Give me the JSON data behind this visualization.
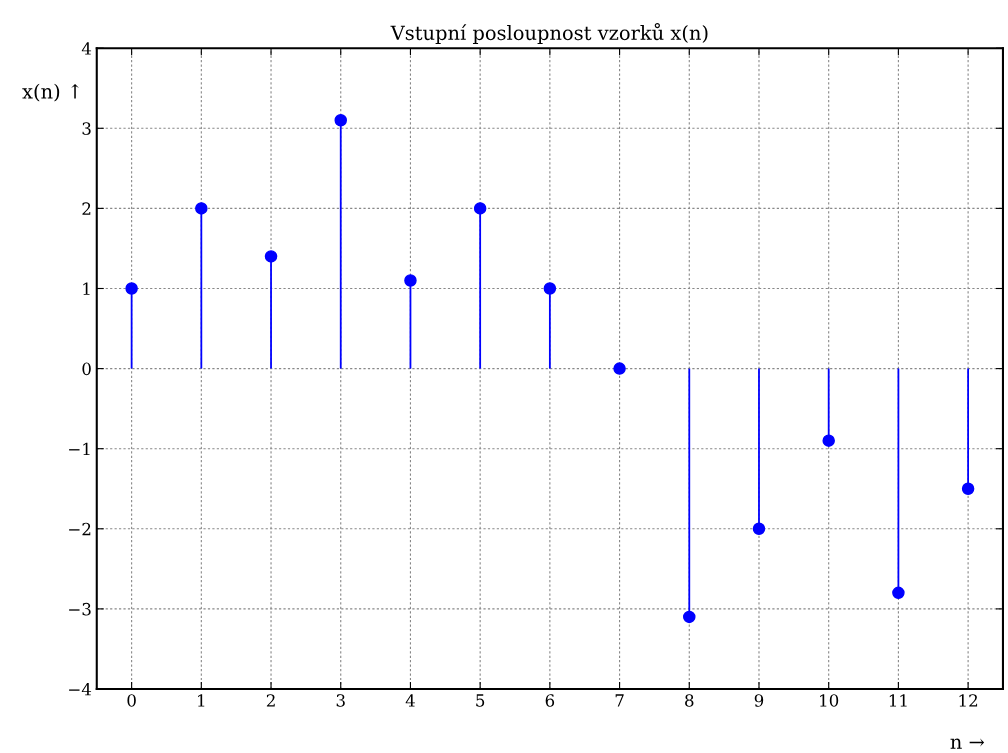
{
  "chart_data": {
    "type": "lollipop",
    "title": "Vstupní posloupnost vzorků x(n)",
    "xlabel": "n →",
    "ylabel": "x(n) ↑",
    "x": [
      0,
      1,
      2,
      3,
      4,
      5,
      6,
      7,
      8,
      9,
      10,
      11,
      12
    ],
    "values": [
      1,
      2,
      1.4,
      3.1,
      1.1,
      2,
      1,
      0,
      -3.1,
      -2,
      -0.9,
      -2.8,
      -1.5
    ],
    "color": "#0000ff",
    "marker": "circle",
    "grid": true,
    "xlim": [
      -0.5,
      12.5
    ],
    "xticks": [
      0,
      1,
      2,
      3,
      4,
      5,
      6,
      7,
      8,
      9,
      10,
      11,
      12
    ],
    "ylim": [
      -4,
      4
    ],
    "yticks": [
      {
        "value": -4,
        "label": "−4"
      },
      {
        "value": -3,
        "label": "−3"
      },
      {
        "value": -2,
        "label": "−2"
      },
      {
        "value": -1,
        "label": "−1"
      },
      0,
      1,
      2,
      3,
      4
    ]
  }
}
